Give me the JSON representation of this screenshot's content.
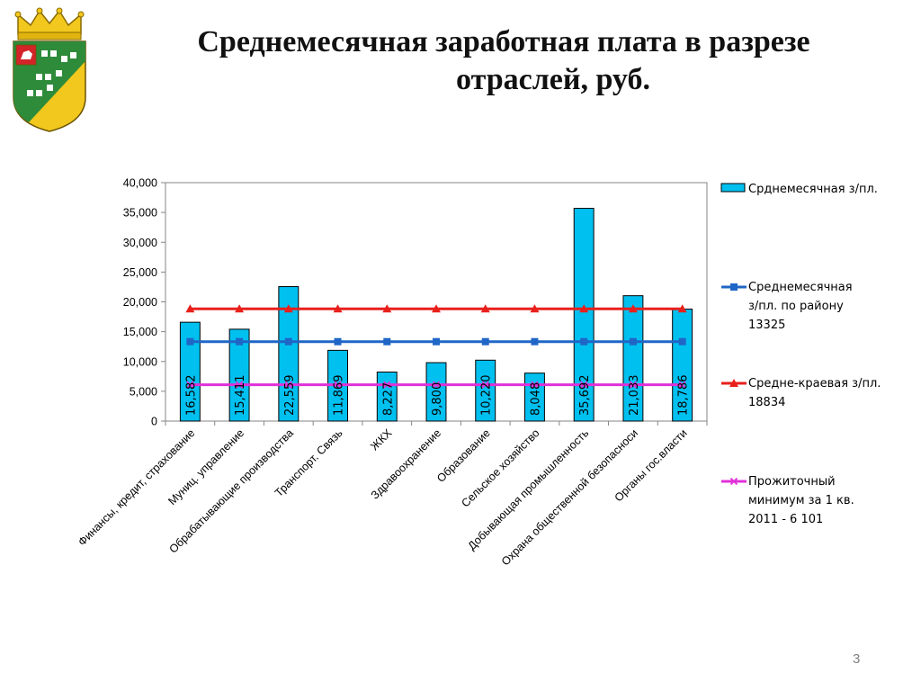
{
  "title_line1": "Среднемесячная заработная плата в разрезе",
  "title_line2": "отраслей, руб.",
  "page_number": "3",
  "colors": {
    "bar": "#00c0f0",
    "bar_stroke": "#000000",
    "district_line": "#1f66c6",
    "regional_line": "#e8201c",
    "minimum_line": "#e030d8"
  },
  "chart_data": {
    "type": "bar",
    "categories": [
      "Финансы, кредит, страхование",
      "Муниц. управление",
      "Обрабатывающие производства",
      "Транспорт. Связь",
      "ЖКХ",
      "Здравоохранение",
      "Образование",
      "Сельское хозяйство",
      "Добывающая промышленность",
      "Охрана общественной безопасноси",
      "Органы гос.власти"
    ],
    "series": [
      {
        "name": "Срднемесячная з/пл.",
        "kind": "bar",
        "values": [
          16582,
          15411,
          22559,
          11869,
          8227,
          9800,
          10220,
          8048,
          35692,
          21033,
          18786
        ],
        "labels": [
          "16,582",
          "15,411",
          "22,559",
          "11,869",
          "8,227",
          "9,800",
          "10,220",
          "8,048",
          "35,692",
          "21,033",
          "18,786"
        ]
      },
      {
        "name": "Среднемесячная з/пл. по району 13325",
        "legend_lines": [
          "Среднемесячная",
          "з/пл. по району",
          "13325"
        ],
        "kind": "line",
        "marker": "square",
        "values": [
          13325,
          13325,
          13325,
          13325,
          13325,
          13325,
          13325,
          13325,
          13325,
          13325,
          13325
        ]
      },
      {
        "name": "Средне-краевая з/пл. 18834",
        "legend_lines": [
          "Средне-краевая з/пл.",
          "18834"
        ],
        "kind": "line",
        "marker": "triangle",
        "values": [
          18834,
          18834,
          18834,
          18834,
          18834,
          18834,
          18834,
          18834,
          18834,
          18834,
          18834
        ]
      },
      {
        "name": "Прожиточный минимум за 1 кв. 2011 - 6 101",
        "legend_lines": [
          "Прожиточный",
          "минимум за 1 кв.",
          "2011 - 6 101"
        ],
        "kind": "line",
        "marker": "x",
        "values": [
          6101,
          6101,
          6101,
          6101,
          6101,
          6101,
          6101,
          6101,
          6101,
          6101,
          6101
        ]
      }
    ],
    "yticks": [
      "0",
      "5,000",
      "10,000",
      "15,000",
      "20,000",
      "25,000",
      "30,000",
      "35,000",
      "40,000"
    ],
    "ylim": [
      0,
      40000
    ],
    "grid": false,
    "legend": "right"
  }
}
